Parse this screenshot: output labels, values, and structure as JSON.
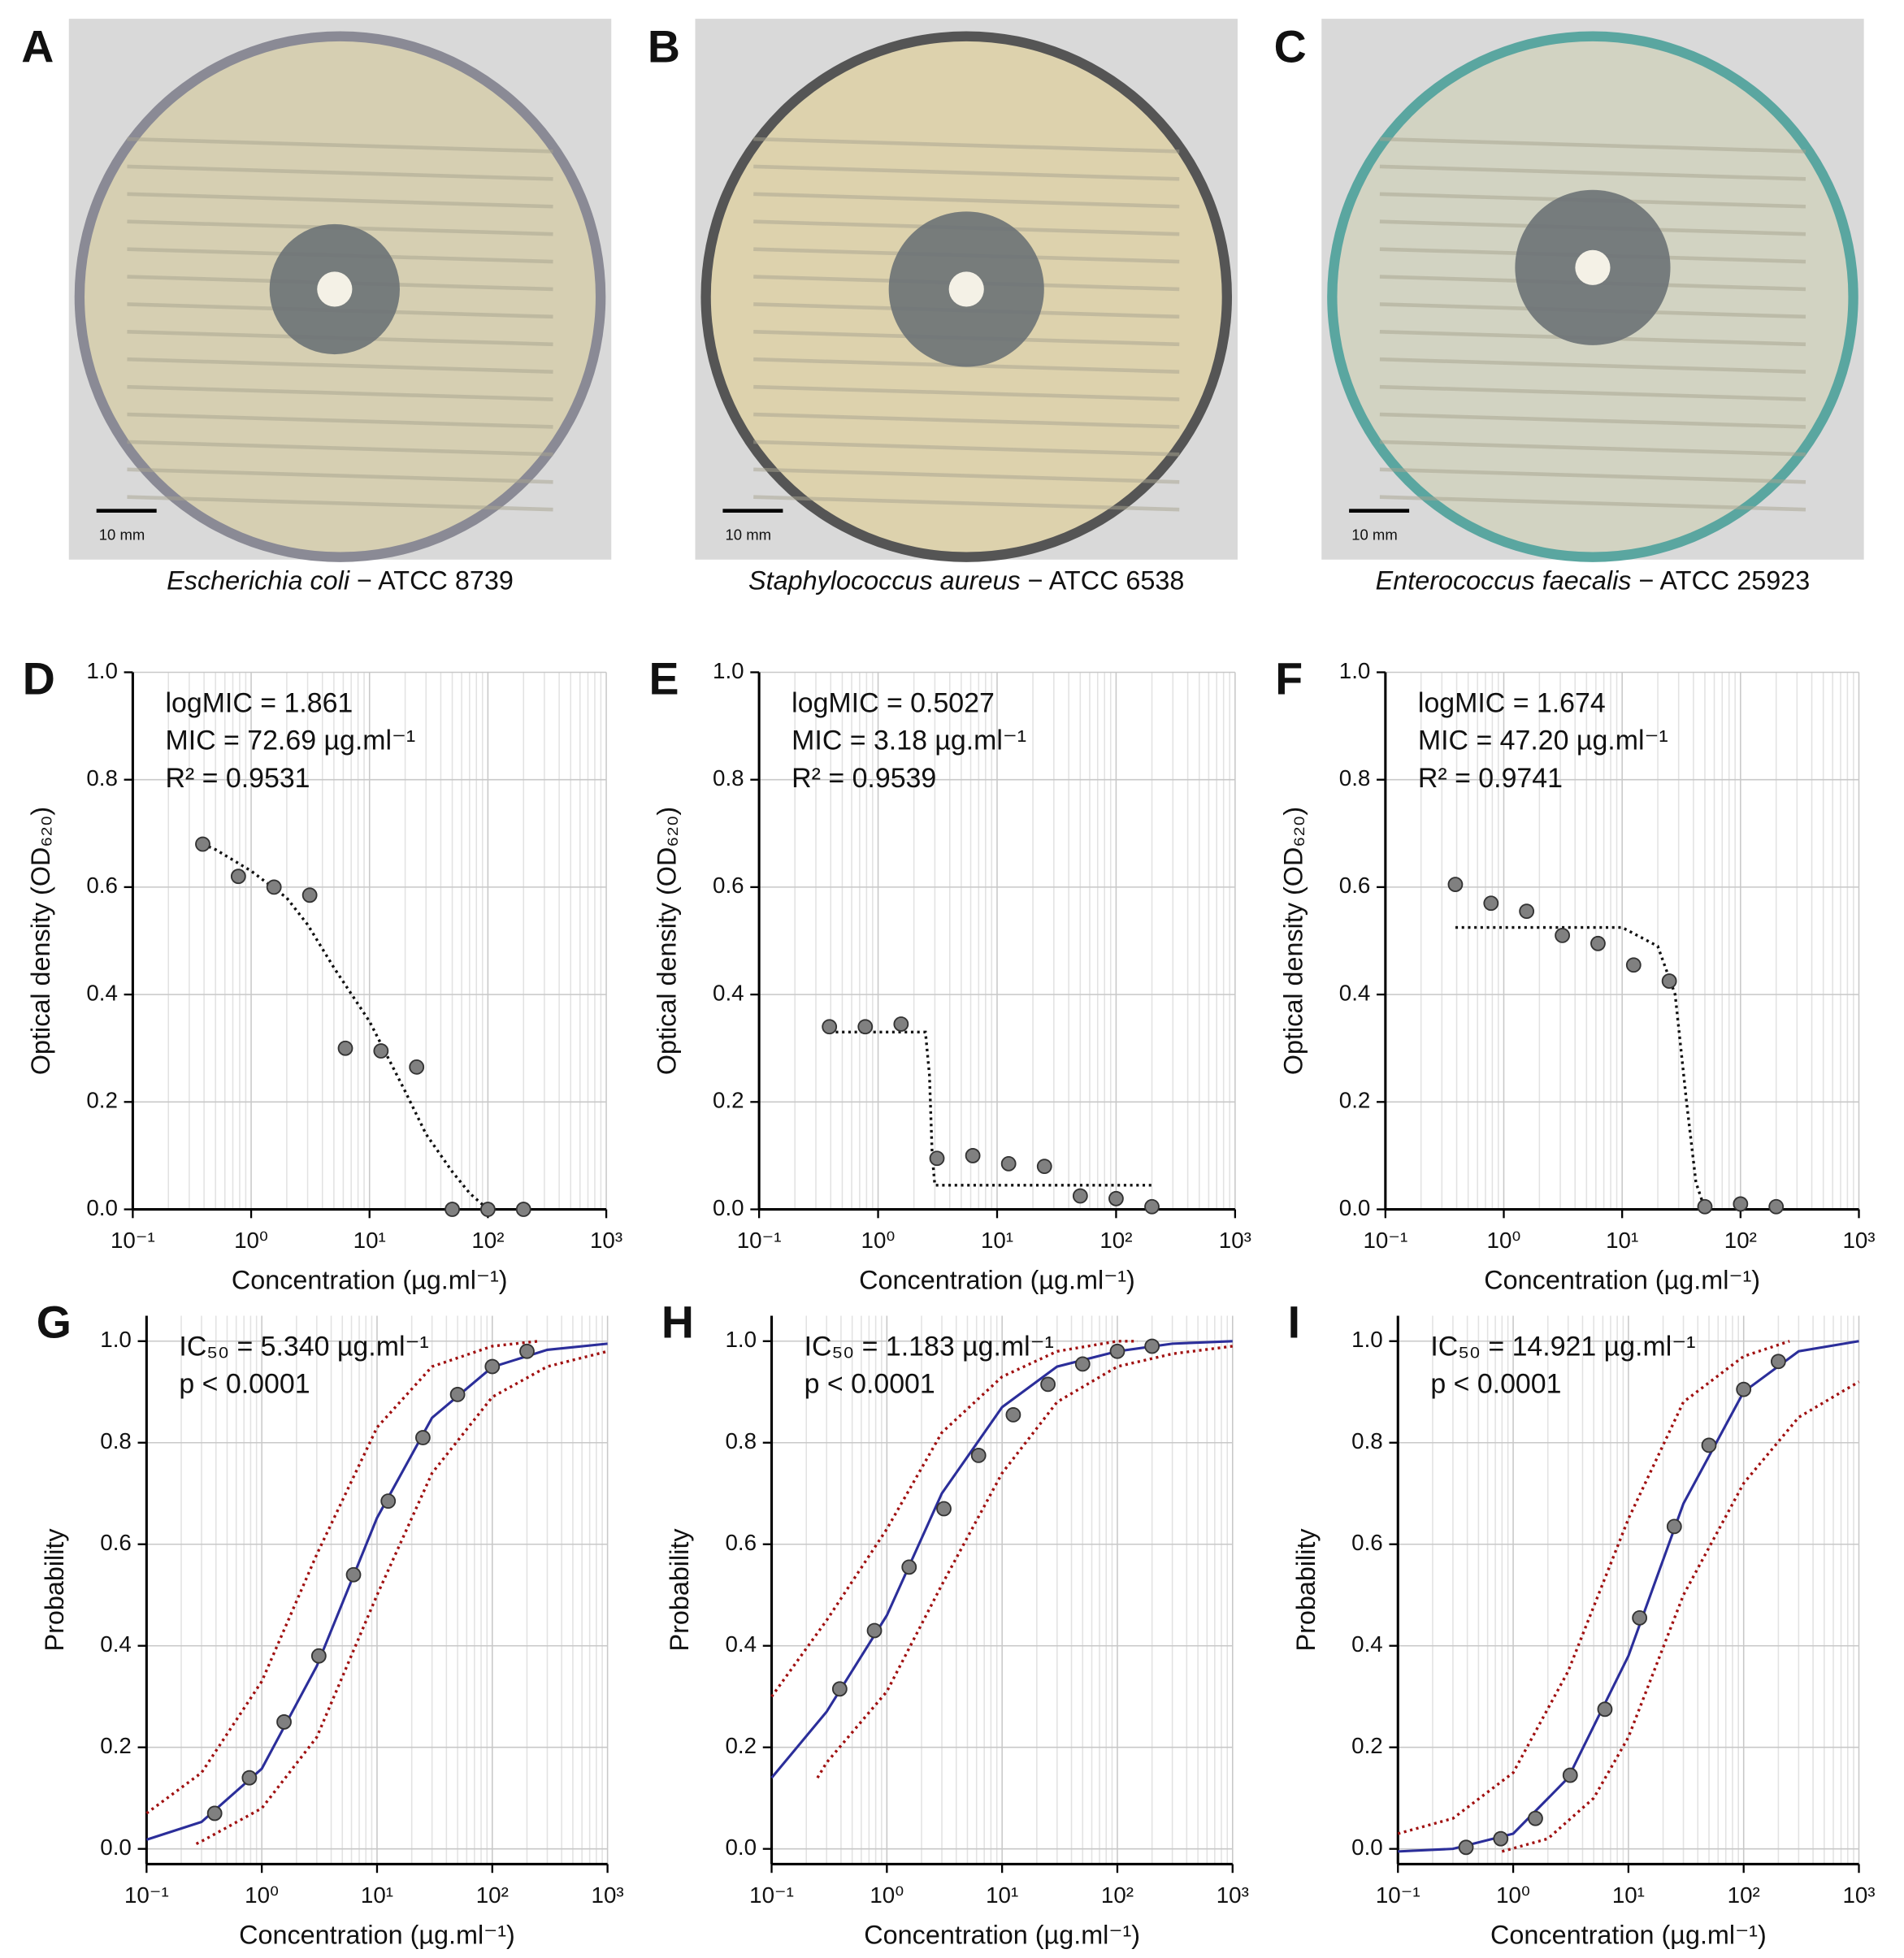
{
  "photos": [
    {
      "panel": "A",
      "species": "Escherichia  coli",
      "strain": " − ATCC 8739",
      "scale_label": "10 mm"
    },
    {
      "panel": "B",
      "species": "Staphylococcus aureus",
      "strain": " − ATCC 6538",
      "scale_label": "10 mm"
    },
    {
      "panel": "C",
      "species": "Enterococcus faecalis",
      "strain": " − ATCC 25923",
      "scale_label": "10 mm"
    }
  ],
  "chart_data": [
    {
      "type": "scatter",
      "panel": "D",
      "annotations": [
        "logMIC = 1.861",
        "MIC = 72.69 µg.ml⁻¹",
        "R² = 0.9531"
      ],
      "x_label": "Concentration (µg.ml⁻¹)",
      "y_label": "Optical density (OD₆₂₀)",
      "log_x": true,
      "grid": true,
      "x": [
        0.39,
        0.78,
        1.56,
        3.125,
        6.25,
        12.5,
        25,
        50,
        100,
        200
      ],
      "values": [
        0.68,
        0.62,
        0.6,
        0.585,
        0.3,
        0.295,
        0.265,
        0,
        0,
        0
      ],
      "color": "#808080",
      "lines": [
        {
          "x": [
            0.39,
            0.5,
            1,
            2,
            3,
            5,
            10,
            20,
            30,
            50,
            70,
            100
          ],
          "values": [
            0.68,
            0.67,
            0.63,
            0.58,
            0.53,
            0.45,
            0.35,
            0.22,
            0.14,
            0.07,
            0.03,
            0
          ],
          "color": "#111111",
          "style": "dotted"
        }
      ],
      "xlim": [
        0.1,
        1000
      ],
      "xticks": [
        {
          "value": 0.1,
          "label": "10⁻¹"
        },
        {
          "value": 1,
          "label": "10⁰"
        },
        {
          "value": 10,
          "label": "10¹"
        },
        {
          "value": 100,
          "label": "10²"
        },
        {
          "value": 1000,
          "label": "10³"
        }
      ],
      "ylim": [
        0,
        1
      ],
      "yticks": [
        {
          "value": 0,
          "label": "0.0"
        },
        0.2,
        0.4,
        0.6,
        0.8,
        {
          "value": 1,
          "label": "1.0"
        }
      ]
    },
    {
      "type": "scatter",
      "panel": "E",
      "annotations": [
        "logMIC = 0.5027",
        "MIC = 3.18 µg.ml⁻¹",
        "R² = 0.9539"
      ],
      "x_label": "Concentration (µg.ml⁻¹)",
      "y_label": "Optical density (OD₆₂₀)",
      "log_x": true,
      "grid": true,
      "x": [
        0.39,
        0.78,
        1.56,
        3.125,
        6.25,
        12.5,
        25,
        50,
        100,
        200
      ],
      "values": [
        0.34,
        0.34,
        0.345,
        0.095,
        0.1,
        0.085,
        0.08,
        0.025,
        0.02,
        0.005
      ],
      "color": "#808080",
      "lines": [
        {
          "x": [
            0.39,
            2.5,
            2.7,
            2.85,
            3,
            200
          ],
          "values": [
            0.33,
            0.33,
            0.25,
            0.1,
            0.045,
            0.045
          ],
          "color": "#111111",
          "style": "dotted"
        }
      ],
      "xlim": [
        0.1,
        1000
      ],
      "xticks": [
        {
          "value": 0.1,
          "label": "10⁻¹"
        },
        {
          "value": 1,
          "label": "10⁰"
        },
        {
          "value": 10,
          "label": "10¹"
        },
        {
          "value": 100,
          "label": "10²"
        },
        {
          "value": 1000,
          "label": "10³"
        }
      ],
      "ylim": [
        0,
        1
      ],
      "yticks": [
        {
          "value": 0,
          "label": "0.0"
        },
        0.2,
        0.4,
        0.6,
        0.8,
        {
          "value": 1,
          "label": "1.0"
        }
      ]
    },
    {
      "type": "scatter",
      "panel": "F",
      "annotations": [
        "logMIC = 1.674",
        "MIC = 47.20 µg.ml⁻¹",
        "R² = 0.9741"
      ],
      "x_label": "Concentration (µg.ml⁻¹)",
      "y_label": "Optical density (OD₆₂₀)",
      "log_x": true,
      "grid": true,
      "x": [
        0.39,
        0.78,
        1.56,
        3.125,
        6.25,
        12.5,
        25,
        50,
        100,
        200
      ],
      "values": [
        0.605,
        0.57,
        0.555,
        0.51,
        0.495,
        0.455,
        0.425,
        0.005,
        0.01,
        0.005
      ],
      "color": "#808080",
      "lines": [
        {
          "x": [
            0.39,
            10,
            20,
            28,
            35,
            42,
            50
          ],
          "values": [
            0.525,
            0.525,
            0.49,
            0.4,
            0.2,
            0.05,
            0
          ],
          "color": "#111111",
          "style": "dotted"
        }
      ],
      "xlim": [
        0.1,
        1000
      ],
      "xticks": [
        {
          "value": 0.1,
          "label": "10⁻¹"
        },
        {
          "value": 1,
          "label": "10⁰"
        },
        {
          "value": 10,
          "label": "10¹"
        },
        {
          "value": 100,
          "label": "10²"
        },
        {
          "value": 1000,
          "label": "10³"
        }
      ],
      "ylim": [
        0,
        1
      ],
      "yticks": [
        {
          "value": 0,
          "label": "0.0"
        },
        0.2,
        0.4,
        0.6,
        0.8,
        {
          "value": 1,
          "label": "1.0"
        }
      ]
    },
    {
      "type": "scatter",
      "panel": "G",
      "annotations": [
        "IC₅₀ = 5.340 µg.ml⁻¹",
        "p < 0.0001"
      ],
      "x_label": "Concentration (µg.ml⁻¹)",
      "y_label": "Probability",
      "log_x": true,
      "grid": true,
      "x": [
        0.39,
        0.78,
        1.56,
        3.125,
        6.25,
        12.5,
        25,
        50,
        100,
        200
      ],
      "values": [
        0.07,
        0.14,
        0.25,
        0.38,
        0.54,
        0.685,
        0.81,
        0.895,
        0.95,
        0.98
      ],
      "color": "#808080",
      "lines": [
        {
          "x": [
            0.1,
            0.3,
            1,
            3,
            10,
            30,
            100,
            300,
            1000
          ],
          "values": [
            0.018,
            0.053,
            0.158,
            0.36,
            0.652,
            0.849,
            0.949,
            0.983,
            0.995
          ],
          "color": "#2b2e9a",
          "style": "solid"
        },
        {
          "x": [
            0.1,
            0.3,
            1,
            3,
            10,
            30,
            100,
            250
          ],
          "values": [
            0.07,
            0.15,
            0.33,
            0.58,
            0.83,
            0.95,
            0.99,
            1
          ],
          "color": "#a01010",
          "style": "dotted"
        },
        {
          "x": [
            0.27,
            0.3,
            1,
            3,
            10,
            30,
            100,
            300,
            1000
          ],
          "values": [
            0.01,
            0.015,
            0.08,
            0.22,
            0.5,
            0.74,
            0.89,
            0.95,
            0.98
          ],
          "color": "#a01010",
          "style": "dotted"
        }
      ],
      "xlim": [
        0.1,
        1000
      ],
      "xticks": [
        {
          "value": 0.1,
          "label": "10⁻¹"
        },
        {
          "value": 1,
          "label": "10⁰"
        },
        {
          "value": 10,
          "label": "10¹"
        },
        {
          "value": 100,
          "label": "10²"
        },
        {
          "value": 1000,
          "label": "10³"
        }
      ],
      "ylim": [
        -0.03,
        1.05
      ],
      "yticks": [
        {
          "value": 0,
          "label": "0.0"
        },
        0.2,
        0.4,
        0.6,
        0.8,
        {
          "value": 1,
          "label": "1.0"
        }
      ]
    },
    {
      "type": "scatter",
      "panel": "H",
      "annotations": [
        "IC₅₀ = 1.183 µg.ml⁻¹",
        "p < 0.0001"
      ],
      "x_label": "Concentration (µg.ml⁻¹)",
      "y_label": "Probability",
      "log_x": true,
      "grid": true,
      "x": [
        0.39,
        0.78,
        1.56,
        3.125,
        6.25,
        12.5,
        25,
        50,
        100,
        200
      ],
      "values": [
        0.315,
        0.43,
        0.555,
        0.67,
        0.775,
        0.855,
        0.915,
        0.955,
        0.98,
        0.99
      ],
      "color": "#808080",
      "lines": [
        {
          "x": [
            0.1,
            0.3,
            1,
            3,
            10,
            30,
            100,
            300,
            1000
          ],
          "values": [
            0.14,
            0.27,
            0.46,
            0.7,
            0.87,
            0.95,
            0.98,
            0.995,
            1
          ],
          "color": "#2b2e9a",
          "style": "solid"
        },
        {
          "x": [
            0.1,
            0.3,
            1,
            3,
            10,
            30,
            100,
            150
          ],
          "values": [
            0.3,
            0.45,
            0.63,
            0.82,
            0.93,
            0.98,
            1,
            1
          ],
          "color": "#a01010",
          "style": "dotted"
        },
        {
          "x": [
            0.25,
            0.3,
            1,
            3,
            10,
            30,
            100,
            300,
            1000
          ],
          "values": [
            0.14,
            0.17,
            0.31,
            0.52,
            0.74,
            0.88,
            0.95,
            0.975,
            0.99
          ],
          "color": "#a01010",
          "style": "dotted"
        }
      ],
      "xlim": [
        0.1,
        1000
      ],
      "xticks": [
        {
          "value": 0.1,
          "label": "10⁻¹"
        },
        {
          "value": 1,
          "label": "10⁰"
        },
        {
          "value": 10,
          "label": "10¹"
        },
        {
          "value": 100,
          "label": "10²"
        },
        {
          "value": 1000,
          "label": "10³"
        }
      ],
      "ylim": [
        -0.03,
        1.05
      ],
      "yticks": [
        {
          "value": 0,
          "label": "0.0"
        },
        0.2,
        0.4,
        0.6,
        0.8,
        {
          "value": 1,
          "label": "1.0"
        }
      ]
    },
    {
      "type": "scatter",
      "panel": "I",
      "annotations": [
        "IC₅₀ = 14.921 µg.ml⁻¹",
        "p < 0.0001"
      ],
      "x_label": "Concentration (µg.ml⁻¹)",
      "y_label": "Probability",
      "log_x": true,
      "grid": true,
      "x": [
        0.39,
        0.78,
        1.56,
        3.125,
        6.25,
        12.5,
        25,
        50,
        100,
        200
      ],
      "values": [
        0.003,
        0.02,
        0.06,
        0.145,
        0.275,
        0.455,
        0.635,
        0.795,
        0.905,
        0.96
      ],
      "color": "#808080",
      "lines": [
        {
          "x": [
            0.1,
            0.3,
            1,
            3,
            10,
            30,
            100,
            300,
            1000
          ],
          "values": [
            -0.005,
            0,
            0.03,
            0.14,
            0.38,
            0.68,
            0.9,
            0.98,
            1
          ],
          "color": "#2b2e9a",
          "style": "solid"
        },
        {
          "x": [
            0.1,
            0.3,
            1,
            3,
            10,
            30,
            100,
            250
          ],
          "values": [
            0.03,
            0.06,
            0.15,
            0.35,
            0.65,
            0.88,
            0.97,
            1
          ],
          "color": "#a01010",
          "style": "dotted"
        },
        {
          "x": [
            0.8,
            2,
            5,
            10,
            30,
            100,
            300,
            1000
          ],
          "values": [
            -0.005,
            0.02,
            0.1,
            0.22,
            0.5,
            0.72,
            0.85,
            0.92
          ],
          "color": "#a01010",
          "style": "dotted"
        }
      ],
      "xlim": [
        0.1,
        1000
      ],
      "xticks": [
        {
          "value": 0.1,
          "label": "10⁻¹"
        },
        {
          "value": 1,
          "label": "10⁰"
        },
        {
          "value": 10,
          "label": "10¹"
        },
        {
          "value": 100,
          "label": "10²"
        },
        {
          "value": 1000,
          "label": "10³"
        }
      ],
      "ylim": [
        -0.03,
        1.05
      ],
      "yticks": [
        {
          "value": 0,
          "label": "0.0"
        },
        0.2,
        0.4,
        0.6,
        0.8,
        {
          "value": 1,
          "label": "1.0"
        }
      ]
    }
  ]
}
